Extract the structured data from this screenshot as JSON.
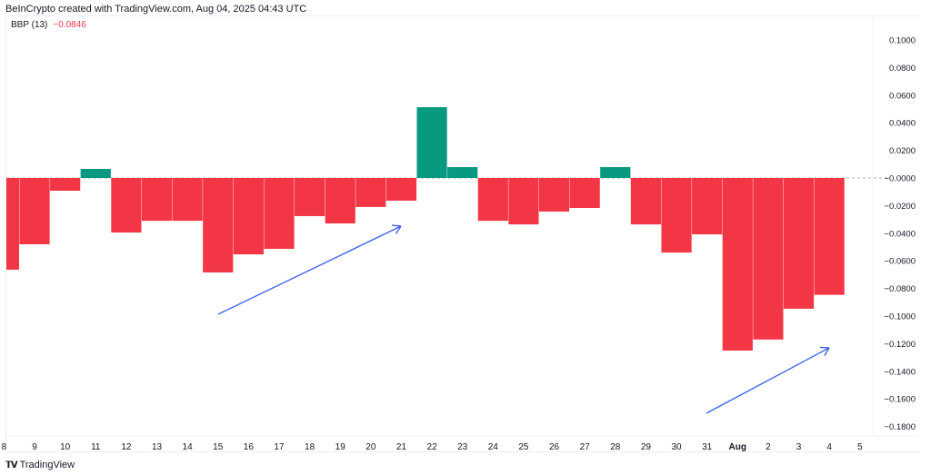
{
  "credit": "BeInCrypto created with TradingView.com, Aug 04, 2025 04:43 UTC",
  "indicator": {
    "name": "BBP (13)",
    "value": "−0.0846"
  },
  "branding": {
    "logo_mark": "TV",
    "name": "TradingView"
  },
  "colors": {
    "positive": "#089981",
    "negative": "#f23645",
    "annotation": "#3d63f5"
  },
  "chart_data": {
    "type": "bar",
    "title": "",
    "xlabel": "",
    "ylabel": "",
    "categories": [
      "8",
      "9",
      "10",
      "11",
      "12",
      "13",
      "14",
      "15",
      "16",
      "17",
      "18",
      "19",
      "20",
      "21",
      "22",
      "23",
      "24",
      "25",
      "26",
      "27",
      "28",
      "29",
      "30",
      "31",
      "Aug",
      "2",
      "3",
      "4",
      "5"
    ],
    "values": [
      -0.0664,
      -0.048,
      -0.0092,
      0.0066,
      -0.0395,
      -0.031,
      -0.031,
      -0.0684,
      -0.0553,
      -0.0513,
      -0.0276,
      -0.0329,
      -0.021,
      -0.0164,
      0.0513,
      0.0079,
      -0.031,
      -0.0336,
      -0.0243,
      -0.0217,
      0.0079,
      -0.0336,
      -0.054,
      -0.0408,
      -0.125,
      -0.117,
      -0.0947,
      -0.0846,
      null
    ],
    "ylim": [
      -0.19,
      0.11
    ],
    "yticks": [
      "0.1000",
      "0.0800",
      "0.0600",
      "0.0400",
      "0.0200",
      "−0.0000",
      "−0.0200",
      "−0.0400",
      "−0.0600",
      "−0.0800",
      "−0.1000",
      "−0.1200",
      "−0.1400",
      "−0.1600",
      "−0.1800"
    ],
    "ytick_values": [
      0.1,
      0.08,
      0.06,
      0.04,
      0.02,
      0,
      -0.02,
      -0.04,
      -0.06,
      -0.08,
      -0.1,
      -0.12,
      -0.14,
      -0.16,
      -0.18
    ],
    "zero_line": "dashed",
    "grid": false,
    "annotations": [
      "arrow-up-right",
      "arrow-up-right"
    ]
  }
}
